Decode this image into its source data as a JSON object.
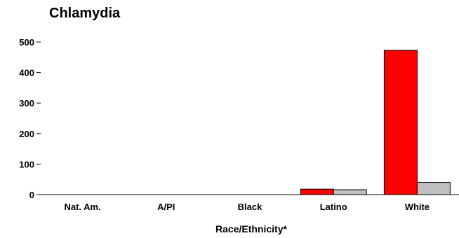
{
  "chart_data": {
    "type": "bar",
    "title": "Chlamydia",
    "xlabel": "Race/Ethnicity*",
    "ylabel": "",
    "categories": [
      "Nat. Am.",
      "A/PI",
      "Black",
      "Latino",
      "White"
    ],
    "series": [
      {
        "values": [
          0,
          0,
          0,
          18,
          473
        ],
        "color": "#ff0000"
      },
      {
        "values": [
          0,
          0,
          0,
          16,
          40
        ],
        "color": "#c0c0c0"
      }
    ],
    "ylim": [
      0,
      550
    ],
    "yticks": [
      0,
      100,
      200,
      300,
      400,
      500
    ],
    "grid": false,
    "legend": "none"
  }
}
